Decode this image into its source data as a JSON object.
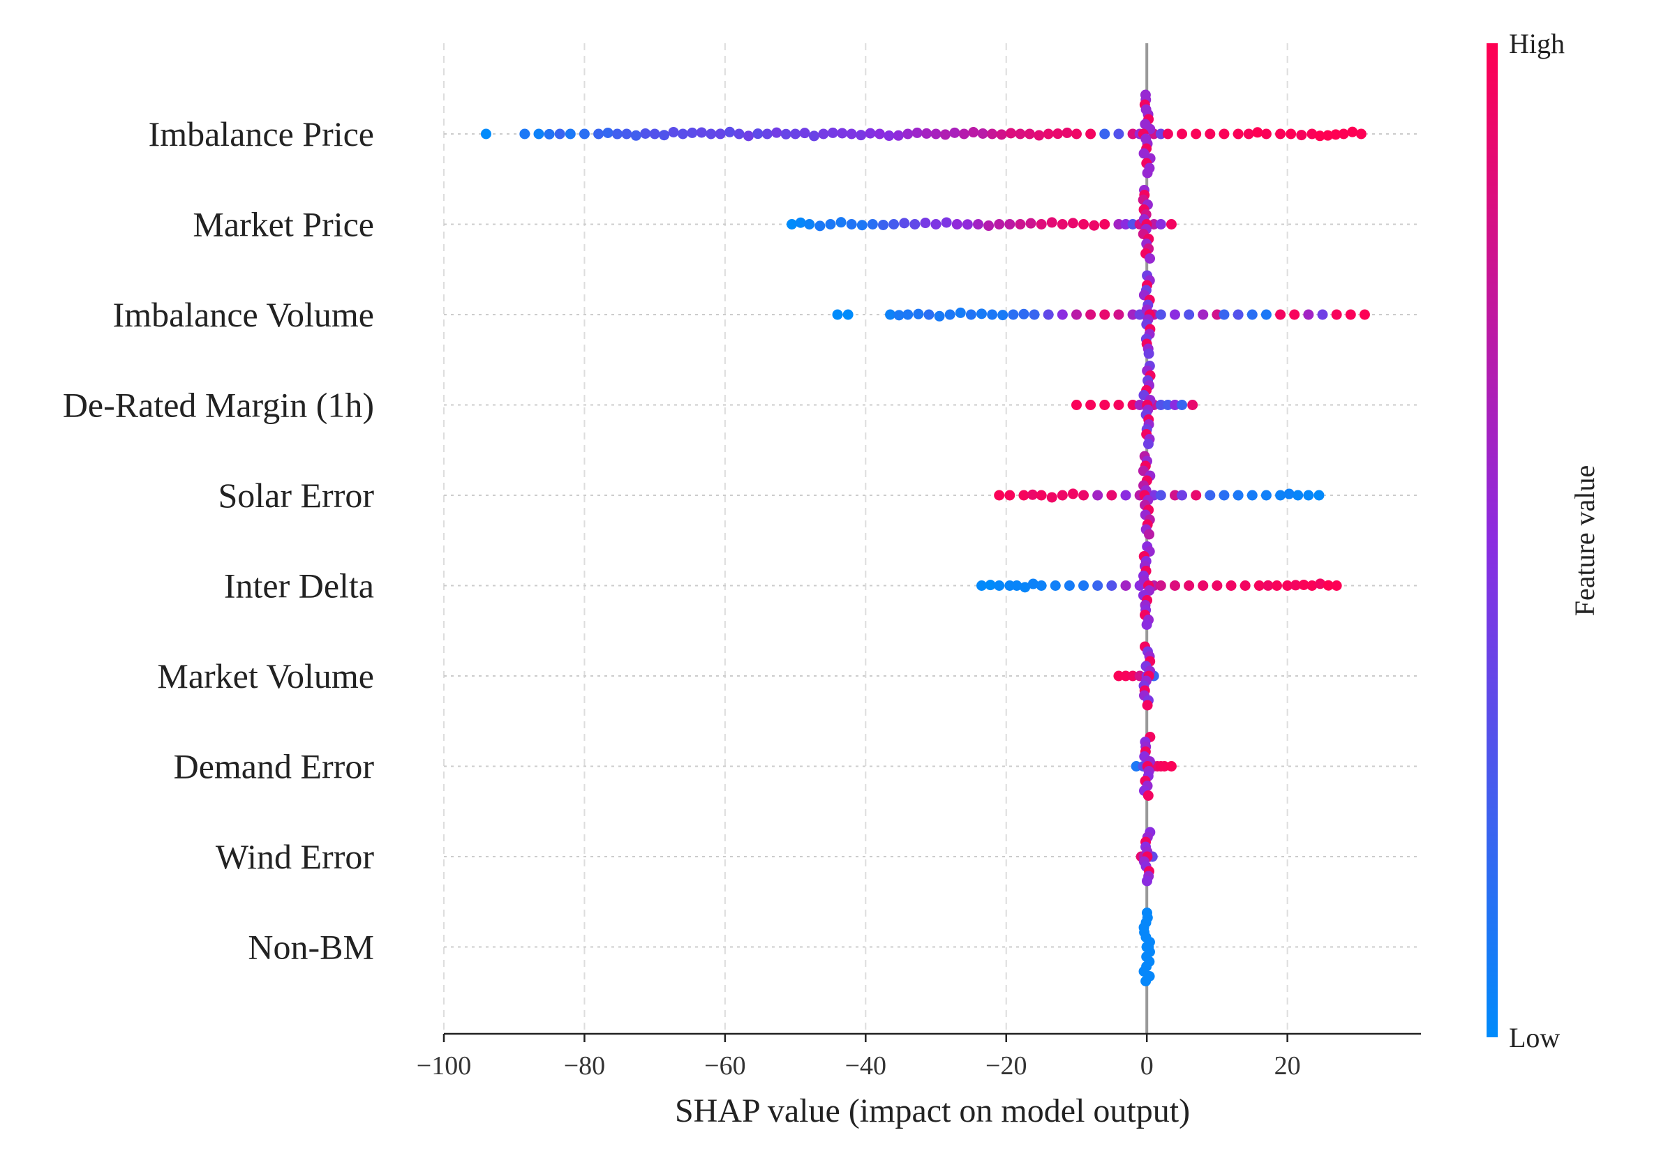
{
  "chart_data": {
    "type": "scatter",
    "subtype": "shap-beeswarm",
    "title": "",
    "xlabel": "SHAP value (impact on model output)",
    "ylabel": "",
    "xlim": [
      -100,
      39
    ],
    "x_ticks": [
      -100,
      -80,
      -60,
      -40,
      -20,
      0,
      20
    ],
    "x_tick_labels": [
      "−100",
      "−80",
      "−60",
      "−40",
      "−20",
      "0",
      "20"
    ],
    "grid": true,
    "colorbar": {
      "label": "Feature value",
      "high_label": "High",
      "low_label": "Low",
      "high_color": "#ff0052",
      "mid_color": "#8b2ce0",
      "low_color": "#008bfb",
      "placement": "right"
    },
    "features": [
      {
        "name": "Imbalance Price",
        "spread": 0.45,
        "points": [
          [
            -94,
            0.0
          ],
          [
            -88.5,
            0.1
          ],
          [
            -86.5,
            0.05
          ],
          [
            -83.5,
            0.2
          ],
          [
            -82,
            0.1
          ],
          [
            -80,
            0.15
          ],
          [
            -78,
            0.2
          ],
          [
            -74,
            0.25
          ],
          [
            -70,
            0.3
          ],
          [
            -66,
            0.32
          ],
          [
            -62,
            0.35
          ],
          [
            -58,
            0.36
          ],
          [
            -54,
            0.37
          ],
          [
            -50,
            0.38
          ],
          [
            -46,
            0.42
          ],
          [
            -42,
            0.45
          ],
          [
            -38,
            0.5
          ],
          [
            -34,
            0.56
          ],
          [
            -30,
            0.62
          ],
          [
            -26,
            0.68
          ],
          [
            -22,
            0.76
          ],
          [
            -18,
            0.84
          ],
          [
            -14,
            0.9
          ],
          [
            -10,
            0.93
          ],
          [
            -8,
            0.95
          ],
          [
            -6,
            0.2
          ],
          [
            -4,
            0.3
          ],
          [
            -2,
            0.85
          ],
          [
            -1,
            0.55
          ],
          [
            1,
            0.8
          ],
          [
            2,
            0.4
          ],
          [
            3,
            0.95
          ],
          [
            5,
            0.97
          ],
          [
            7,
            0.98
          ],
          [
            9,
            0.97
          ],
          [
            11,
            0.98
          ],
          [
            13,
            0.98
          ],
          [
            14.5,
            0.97
          ],
          [
            17,
            0.98
          ],
          [
            19,
            0.98
          ],
          [
            20.5,
            0.99
          ],
          [
            23.5,
            0.98
          ],
          [
            28,
            0.99
          ],
          [
            30.5,
            0.99
          ]
        ]
      },
      {
        "name": "Market Price",
        "spread": 0.4,
        "points": [
          [
            -50.5,
            0.0
          ],
          [
            -48,
            0.05
          ],
          [
            -45,
            0.1
          ],
          [
            -42,
            0.12
          ],
          [
            -39,
            0.15
          ],
          [
            -36,
            0.25
          ],
          [
            -33,
            0.35
          ],
          [
            -30,
            0.45
          ],
          [
            -27,
            0.52
          ],
          [
            -24,
            0.6
          ],
          [
            -21,
            0.7
          ],
          [
            -18,
            0.78
          ],
          [
            -15,
            0.86
          ],
          [
            -12,
            0.9
          ],
          [
            -9,
            0.93
          ],
          [
            -6,
            0.95
          ],
          [
            -4,
            0.6
          ],
          [
            -3,
            0.5
          ],
          [
            -2,
            0.3
          ],
          [
            -1,
            0.8
          ],
          [
            1,
            0.7
          ],
          [
            2,
            0.5
          ],
          [
            3.5,
            0.95
          ]
        ]
      },
      {
        "name": "Imbalance Volume",
        "spread": 0.45,
        "points": [
          [
            -44,
            0.0
          ],
          [
            -42.5,
            0.0
          ],
          [
            -36.5,
            0.05
          ],
          [
            -34,
            0.1
          ],
          [
            -31,
            0.15
          ],
          [
            -28,
            0.1
          ],
          [
            -25,
            0.12
          ],
          [
            -22,
            0.1
          ],
          [
            -19,
            0.15
          ],
          [
            -16,
            0.2
          ],
          [
            -14,
            0.35
          ],
          [
            -12,
            0.5
          ],
          [
            -10,
            0.7
          ],
          [
            -8,
            0.85
          ],
          [
            -6,
            0.9
          ],
          [
            -4,
            0.8
          ],
          [
            -2,
            0.6
          ],
          [
            -1,
            0.4
          ],
          [
            1,
            0.7
          ],
          [
            2,
            0.3
          ],
          [
            4,
            0.5
          ],
          [
            6,
            0.3
          ],
          [
            8,
            0.6
          ],
          [
            10,
            0.8
          ],
          [
            11,
            0.2
          ],
          [
            13,
            0.3
          ],
          [
            15,
            0.15
          ],
          [
            17,
            0.1
          ],
          [
            19,
            0.95
          ],
          [
            21,
            0.97
          ],
          [
            23,
            0.6
          ],
          [
            25,
            0.4
          ],
          [
            27,
            0.97
          ],
          [
            29,
            0.98
          ],
          [
            31,
            0.99
          ]
        ]
      },
      {
        "name": "De-Rated Margin (1h)",
        "spread": 0.45,
        "points": [
          [
            -10,
            0.98
          ],
          [
            -8,
            0.97
          ],
          [
            -6,
            0.97
          ],
          [
            -4,
            0.96
          ],
          [
            -2,
            0.95
          ],
          [
            -1,
            0.6
          ],
          [
            0.5,
            0.4
          ],
          [
            1,
            0.75
          ],
          [
            2,
            0.3
          ],
          [
            3,
            0.25
          ],
          [
            4,
            0.5
          ],
          [
            5,
            0.2
          ],
          [
            6.5,
            0.9
          ]
        ]
      },
      {
        "name": "Solar Error",
        "spread": 0.45,
        "points": [
          [
            -21,
            0.98
          ],
          [
            -19.5,
            0.97
          ],
          [
            -17.5,
            0.96
          ],
          [
            -15,
            0.95
          ],
          [
            -12,
            0.93
          ],
          [
            -9,
            0.92
          ],
          [
            -7,
            0.6
          ],
          [
            -5,
            0.9
          ],
          [
            -3,
            0.5
          ],
          [
            -1,
            0.7
          ],
          [
            1,
            0.45
          ],
          [
            2,
            0.3
          ],
          [
            4,
            0.8
          ],
          [
            5,
            0.4
          ],
          [
            7,
            0.9
          ],
          [
            9,
            0.2
          ],
          [
            11,
            0.15
          ],
          [
            13,
            0.1
          ],
          [
            15,
            0.08
          ],
          [
            17,
            0.06
          ],
          [
            19,
            0.05
          ],
          [
            21.5,
            0.03
          ],
          [
            23,
            0.02
          ],
          [
            24.5,
            0.01
          ]
        ]
      },
      {
        "name": "Inter Delta",
        "spread": 0.45,
        "points": [
          [
            -23.5,
            0.01
          ],
          [
            -21,
            0.02
          ],
          [
            -19.5,
            0.03
          ],
          [
            -18.5,
            0.03
          ],
          [
            -15,
            0.05
          ],
          [
            -13,
            0.06
          ],
          [
            -11,
            0.08
          ],
          [
            -9,
            0.1
          ],
          [
            -7,
            0.2
          ],
          [
            -5,
            0.3
          ],
          [
            -3,
            0.6
          ],
          [
            -1,
            0.5
          ],
          [
            1,
            0.7
          ],
          [
            2,
            0.8
          ],
          [
            4,
            0.85
          ],
          [
            6,
            0.9
          ],
          [
            8,
            0.92
          ],
          [
            10,
            0.93
          ],
          [
            12,
            0.94
          ],
          [
            14,
            0.95
          ],
          [
            16,
            0.96
          ],
          [
            18.5,
            0.97
          ],
          [
            20,
            0.97
          ],
          [
            23.5,
            0.98
          ],
          [
            27,
            0.99
          ]
        ]
      },
      {
        "name": "Market Volume",
        "spread": 0.3,
        "points": [
          [
            -4,
            0.98
          ],
          [
            -3,
            0.97
          ],
          [
            -2,
            0.95
          ],
          [
            -1,
            0.8
          ],
          [
            0,
            0.45
          ],
          [
            0.5,
            0.3
          ],
          [
            1,
            0.2
          ],
          [
            0.2,
            0.6
          ]
        ]
      },
      {
        "name": "Demand Error",
        "spread": 0.3,
        "points": [
          [
            -1.5,
            0.1
          ],
          [
            -0.5,
            0.3
          ],
          [
            0,
            0.5
          ],
          [
            0.5,
            0.2
          ],
          [
            1,
            0.6
          ],
          [
            1.5,
            0.9
          ],
          [
            2,
            0.95
          ],
          [
            2.5,
            0.97
          ],
          [
            3.5,
            0.98
          ]
        ]
      },
      {
        "name": "Wind Error",
        "spread": 0.28,
        "points": [
          [
            -0.8,
            0.9
          ],
          [
            -0.4,
            0.7
          ],
          [
            0,
            0.5
          ],
          [
            0.4,
            0.8
          ],
          [
            0.8,
            0.35
          ],
          [
            0.2,
            0.95
          ]
        ]
      },
      {
        "name": "Non-BM",
        "spread": 0.4,
        "points": [
          [
            0,
            0.02
          ],
          [
            0,
            0.03
          ],
          [
            0,
            0.01
          ]
        ]
      }
    ]
  }
}
